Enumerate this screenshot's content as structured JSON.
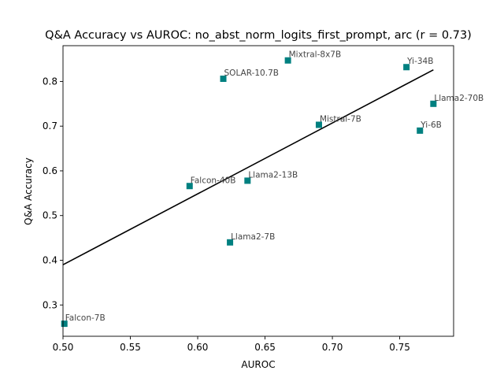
{
  "chart_data": {
    "type": "scatter",
    "title": "Q&A Accuracy vs AUROC: no_abst_norm_logits_first_prompt, arc (r = 0.73)",
    "xlabel": "AUROC",
    "ylabel": "Q&A Accuracy",
    "xlim": [
      0.5,
      0.79
    ],
    "ylim": [
      0.23,
      0.88
    ],
    "xticks": [
      "0.50",
      "0.55",
      "0.60",
      "0.65",
      "0.70",
      "0.75"
    ],
    "yticks": [
      "0.3",
      "0.4",
      "0.5",
      "0.6",
      "0.7",
      "0.8"
    ],
    "grid": false,
    "marker_color": "#008080",
    "line_color": "#000000",
    "points": [
      {
        "label": "Falcon-7B",
        "x": 0.501,
        "y": 0.258
      },
      {
        "label": "Falcon-40B",
        "x": 0.594,
        "y": 0.566
      },
      {
        "label": "Llama2-13B",
        "x": 0.637,
        "y": 0.578
      },
      {
        "label": "Llama2-7B",
        "x": 0.624,
        "y": 0.44
      },
      {
        "label": "SOLAR-10.7B",
        "x": 0.619,
        "y": 0.806
      },
      {
        "label": "Mixtral-8x7B",
        "x": 0.667,
        "y": 0.847
      },
      {
        "label": "Mistral-7B",
        "x": 0.69,
        "y": 0.703
      },
      {
        "label": "Yi-34B",
        "x": 0.755,
        "y": 0.832
      },
      {
        "label": "Llama2-70B",
        "x": 0.775,
        "y": 0.75
      },
      {
        "label": "Yi-6B",
        "x": 0.765,
        "y": 0.69
      }
    ],
    "fit_line": {
      "x": [
        0.5,
        0.775
      ],
      "y": [
        0.39,
        0.826
      ]
    }
  }
}
